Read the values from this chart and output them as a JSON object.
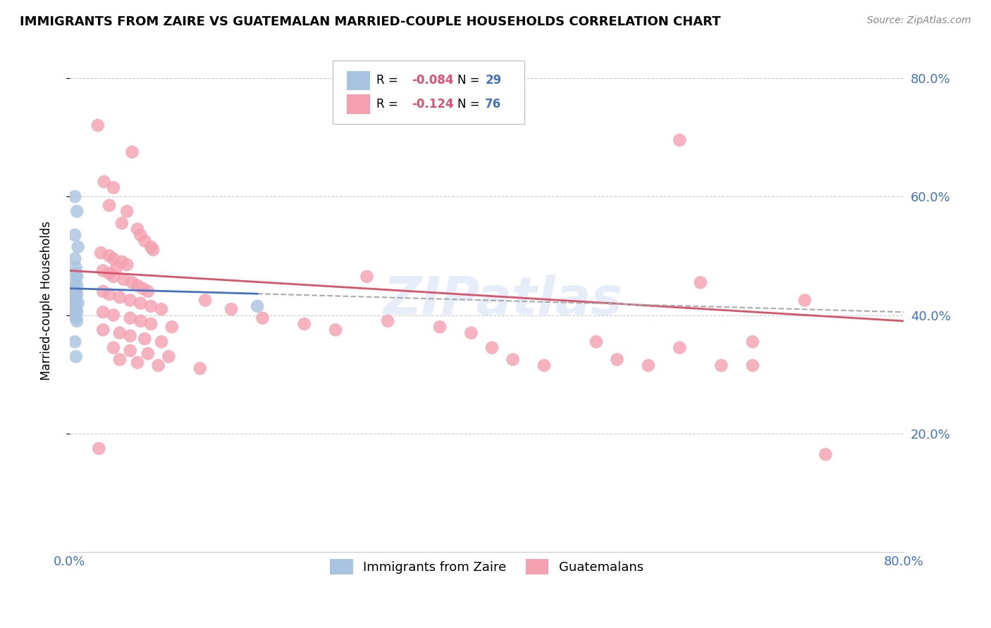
{
  "title": "IMMIGRANTS FROM ZAIRE VS GUATEMALAN MARRIED-COUPLE HOUSEHOLDS CORRELATION CHART",
  "source": "Source: ZipAtlas.com",
  "ylabel": "Married-couple Households",
  "xmin": 0.0,
  "xmax": 0.8,
  "ymin": 0.0,
  "ymax": 0.85,
  "yticks": [
    0.2,
    0.4,
    0.6,
    0.8
  ],
  "ytick_labels": [
    "20.0%",
    "40.0%",
    "60.0%",
    "80.0%"
  ],
  "watermark": "ZIPatlas",
  "zaire_color": "#a8c4e0",
  "guatemalan_color": "#f4a0b0",
  "zaire_line_color": "#4472c4",
  "guatemalan_line_color": "#d9536b",
  "zaire_scatter": [
    [
      0.005,
      0.6
    ],
    [
      0.007,
      0.575
    ],
    [
      0.005,
      0.535
    ],
    [
      0.008,
      0.515
    ],
    [
      0.005,
      0.495
    ],
    [
      0.006,
      0.48
    ],
    [
      0.006,
      0.47
    ],
    [
      0.007,
      0.465
    ],
    [
      0.005,
      0.455
    ],
    [
      0.007,
      0.45
    ],
    [
      0.004,
      0.445
    ],
    [
      0.006,
      0.44
    ],
    [
      0.005,
      0.44
    ],
    [
      0.007,
      0.435
    ],
    [
      0.004,
      0.43
    ],
    [
      0.005,
      0.43
    ],
    [
      0.006,
      0.425
    ],
    [
      0.008,
      0.42
    ],
    [
      0.004,
      0.415
    ],
    [
      0.005,
      0.41
    ],
    [
      0.006,
      0.41
    ],
    [
      0.007,
      0.405
    ],
    [
      0.004,
      0.4
    ],
    [
      0.005,
      0.4
    ],
    [
      0.006,
      0.395
    ],
    [
      0.007,
      0.39
    ],
    [
      0.18,
      0.415
    ],
    [
      0.005,
      0.355
    ],
    [
      0.006,
      0.33
    ]
  ],
  "guatemalan_scatter": [
    [
      0.027,
      0.72
    ],
    [
      0.06,
      0.675
    ],
    [
      0.033,
      0.625
    ],
    [
      0.042,
      0.615
    ],
    [
      0.038,
      0.585
    ],
    [
      0.055,
      0.575
    ],
    [
      0.05,
      0.555
    ],
    [
      0.065,
      0.545
    ],
    [
      0.068,
      0.535
    ],
    [
      0.072,
      0.525
    ],
    [
      0.078,
      0.515
    ],
    [
      0.08,
      0.51
    ],
    [
      0.03,
      0.505
    ],
    [
      0.038,
      0.5
    ],
    [
      0.042,
      0.495
    ],
    [
      0.05,
      0.49
    ],
    [
      0.055,
      0.485
    ],
    [
      0.045,
      0.48
    ],
    [
      0.032,
      0.475
    ],
    [
      0.038,
      0.47
    ],
    [
      0.042,
      0.465
    ],
    [
      0.052,
      0.46
    ],
    [
      0.06,
      0.455
    ],
    [
      0.065,
      0.45
    ],
    [
      0.07,
      0.445
    ],
    [
      0.075,
      0.44
    ],
    [
      0.032,
      0.44
    ],
    [
      0.038,
      0.435
    ],
    [
      0.048,
      0.43
    ],
    [
      0.058,
      0.425
    ],
    [
      0.068,
      0.42
    ],
    [
      0.078,
      0.415
    ],
    [
      0.088,
      0.41
    ],
    [
      0.032,
      0.405
    ],
    [
      0.042,
      0.4
    ],
    [
      0.058,
      0.395
    ],
    [
      0.068,
      0.39
    ],
    [
      0.078,
      0.385
    ],
    [
      0.098,
      0.38
    ],
    [
      0.032,
      0.375
    ],
    [
      0.048,
      0.37
    ],
    [
      0.058,
      0.365
    ],
    [
      0.072,
      0.36
    ],
    [
      0.088,
      0.355
    ],
    [
      0.042,
      0.345
    ],
    [
      0.058,
      0.34
    ],
    [
      0.075,
      0.335
    ],
    [
      0.095,
      0.33
    ],
    [
      0.048,
      0.325
    ],
    [
      0.065,
      0.32
    ],
    [
      0.085,
      0.315
    ],
    [
      0.125,
      0.31
    ],
    [
      0.13,
      0.425
    ],
    [
      0.155,
      0.41
    ],
    [
      0.185,
      0.395
    ],
    [
      0.225,
      0.385
    ],
    [
      0.255,
      0.375
    ],
    [
      0.285,
      0.465
    ],
    [
      0.305,
      0.39
    ],
    [
      0.355,
      0.38
    ],
    [
      0.385,
      0.37
    ],
    [
      0.405,
      0.345
    ],
    [
      0.425,
      0.325
    ],
    [
      0.455,
      0.315
    ],
    [
      0.505,
      0.355
    ],
    [
      0.525,
      0.325
    ],
    [
      0.555,
      0.315
    ],
    [
      0.585,
      0.345
    ],
    [
      0.605,
      0.455
    ],
    [
      0.625,
      0.315
    ],
    [
      0.655,
      0.355
    ],
    [
      0.655,
      0.315
    ],
    [
      0.705,
      0.425
    ],
    [
      0.725,
      0.165
    ],
    [
      0.028,
      0.175
    ],
    [
      0.585,
      0.695
    ]
  ]
}
